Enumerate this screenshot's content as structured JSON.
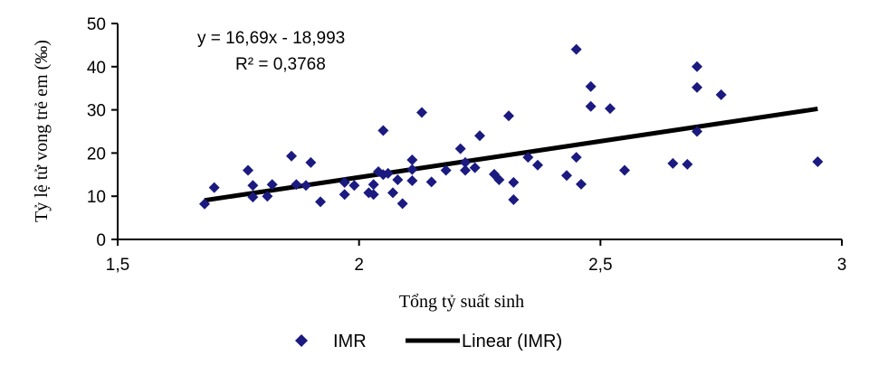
{
  "chart_data": {
    "type": "scatter",
    "title": "",
    "xlabel": "Tổng tỷ suất sinh",
    "ylabel": "Tỷ lệ tử vong trẻ em (‰)",
    "xlim": [
      1.5,
      3
    ],
    "ylim": [
      0,
      50
    ],
    "x_ticks": [
      "1,5",
      "2",
      "2,5",
      "3"
    ],
    "y_ticks": [
      "0",
      "10",
      "20",
      "30",
      "40",
      "50"
    ],
    "grid": false,
    "legend_position": "bottom",
    "series": [
      {
        "name": "IMR",
        "marker": "diamond",
        "color": "#1a1a80",
        "points": [
          [
            1.68,
            8.2
          ],
          [
            1.7,
            12.0
          ],
          [
            1.77,
            16.0
          ],
          [
            1.78,
            12.5
          ],
          [
            1.78,
            9.8
          ],
          [
            1.81,
            10.0
          ],
          [
            1.82,
            12.7
          ],
          [
            1.86,
            19.3
          ],
          [
            1.87,
            12.7
          ],
          [
            1.89,
            12.5
          ],
          [
            1.9,
            17.8
          ],
          [
            1.92,
            8.7
          ],
          [
            1.97,
            13.2
          ],
          [
            1.97,
            10.4
          ],
          [
            1.99,
            12.5
          ],
          [
            2.02,
            10.8
          ],
          [
            2.03,
            12.7
          ],
          [
            2.03,
            10.4
          ],
          [
            2.04,
            15.7
          ],
          [
            2.05,
            15.0
          ],
          [
            2.05,
            25.2
          ],
          [
            2.06,
            15.3
          ],
          [
            2.07,
            10.8
          ],
          [
            2.08,
            13.8
          ],
          [
            2.09,
            8.3
          ],
          [
            2.11,
            18.4
          ],
          [
            2.11,
            16.2
          ],
          [
            2.11,
            13.6
          ],
          [
            2.13,
            29.4
          ],
          [
            2.15,
            13.3
          ],
          [
            2.18,
            16.0
          ],
          [
            2.21,
            21.0
          ],
          [
            2.22,
            17.8
          ],
          [
            2.22,
            16.0
          ],
          [
            2.24,
            16.6
          ],
          [
            2.25,
            24.0
          ],
          [
            2.28,
            15.1
          ],
          [
            2.29,
            13.8
          ],
          [
            2.31,
            28.6
          ],
          [
            2.32,
            13.2
          ],
          [
            2.32,
            9.2
          ],
          [
            2.35,
            19.0
          ],
          [
            2.37,
            17.2
          ],
          [
            2.43,
            14.8
          ],
          [
            2.45,
            44.0
          ],
          [
            2.45,
            19.0
          ],
          [
            2.46,
            12.8
          ],
          [
            2.48,
            35.4
          ],
          [
            2.48,
            30.8
          ],
          [
            2.52,
            30.3
          ],
          [
            2.55,
            16.0
          ],
          [
            2.65,
            17.6
          ],
          [
            2.68,
            17.4
          ],
          [
            2.7,
            40.0
          ],
          [
            2.7,
            35.2
          ],
          [
            2.7,
            25.0
          ],
          [
            2.75,
            33.5
          ],
          [
            2.95,
            18.0
          ]
        ]
      },
      {
        "name": "Linear (IMR)",
        "type": "line",
        "color": "#000000",
        "x": [
          1.68,
          2.95
        ],
        "y": [
          9.05,
          30.24
        ]
      }
    ],
    "trendline": {
      "equation": "y = 16,69x - 18,993",
      "r_squared": "R² = 0,3768",
      "slope": 16.69,
      "intercept": -18.993
    }
  }
}
